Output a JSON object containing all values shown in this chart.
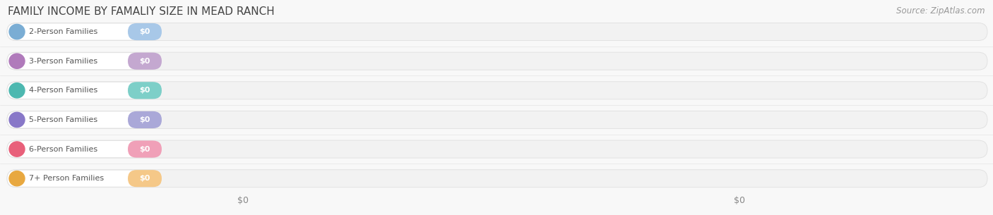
{
  "title": "FAMILY INCOME BY FAMALIY SIZE IN MEAD RANCH",
  "source": "Source: ZipAtlas.com",
  "categories": [
    "2-Person Families",
    "3-Person Families",
    "4-Person Families",
    "5-Person Families",
    "6-Person Families",
    "7+ Person Families"
  ],
  "values": [
    0,
    0,
    0,
    0,
    0,
    0
  ],
  "bar_colors": [
    "#a8c8e8",
    "#c4a8d0",
    "#7dcfc8",
    "#aaa8d8",
    "#f0a0b8",
    "#f5c888"
  ],
  "dot_colors": [
    "#7aadd4",
    "#b07abb",
    "#4db8b0",
    "#8878c8",
    "#e8607a",
    "#e8a840"
  ],
  "bg_color": "#f8f8f8",
  "title_color": "#444444",
  "source_color": "#999999",
  "label_text_color": "#555555",
  "value_text_color": "#ffffff",
  "track_color": "#f2f2f2",
  "track_border_color": "#e2e2e2",
  "label_bg_color": "#ffffff",
  "xlim_left": 0,
  "xlim_right": 1,
  "title_fontsize": 11,
  "source_fontsize": 8.5,
  "label_fontsize": 8,
  "value_fontsize": 8,
  "xtick_positions": [
    0.245,
    0.745
  ],
  "xtick_labels": [
    "$0",
    "$0"
  ]
}
